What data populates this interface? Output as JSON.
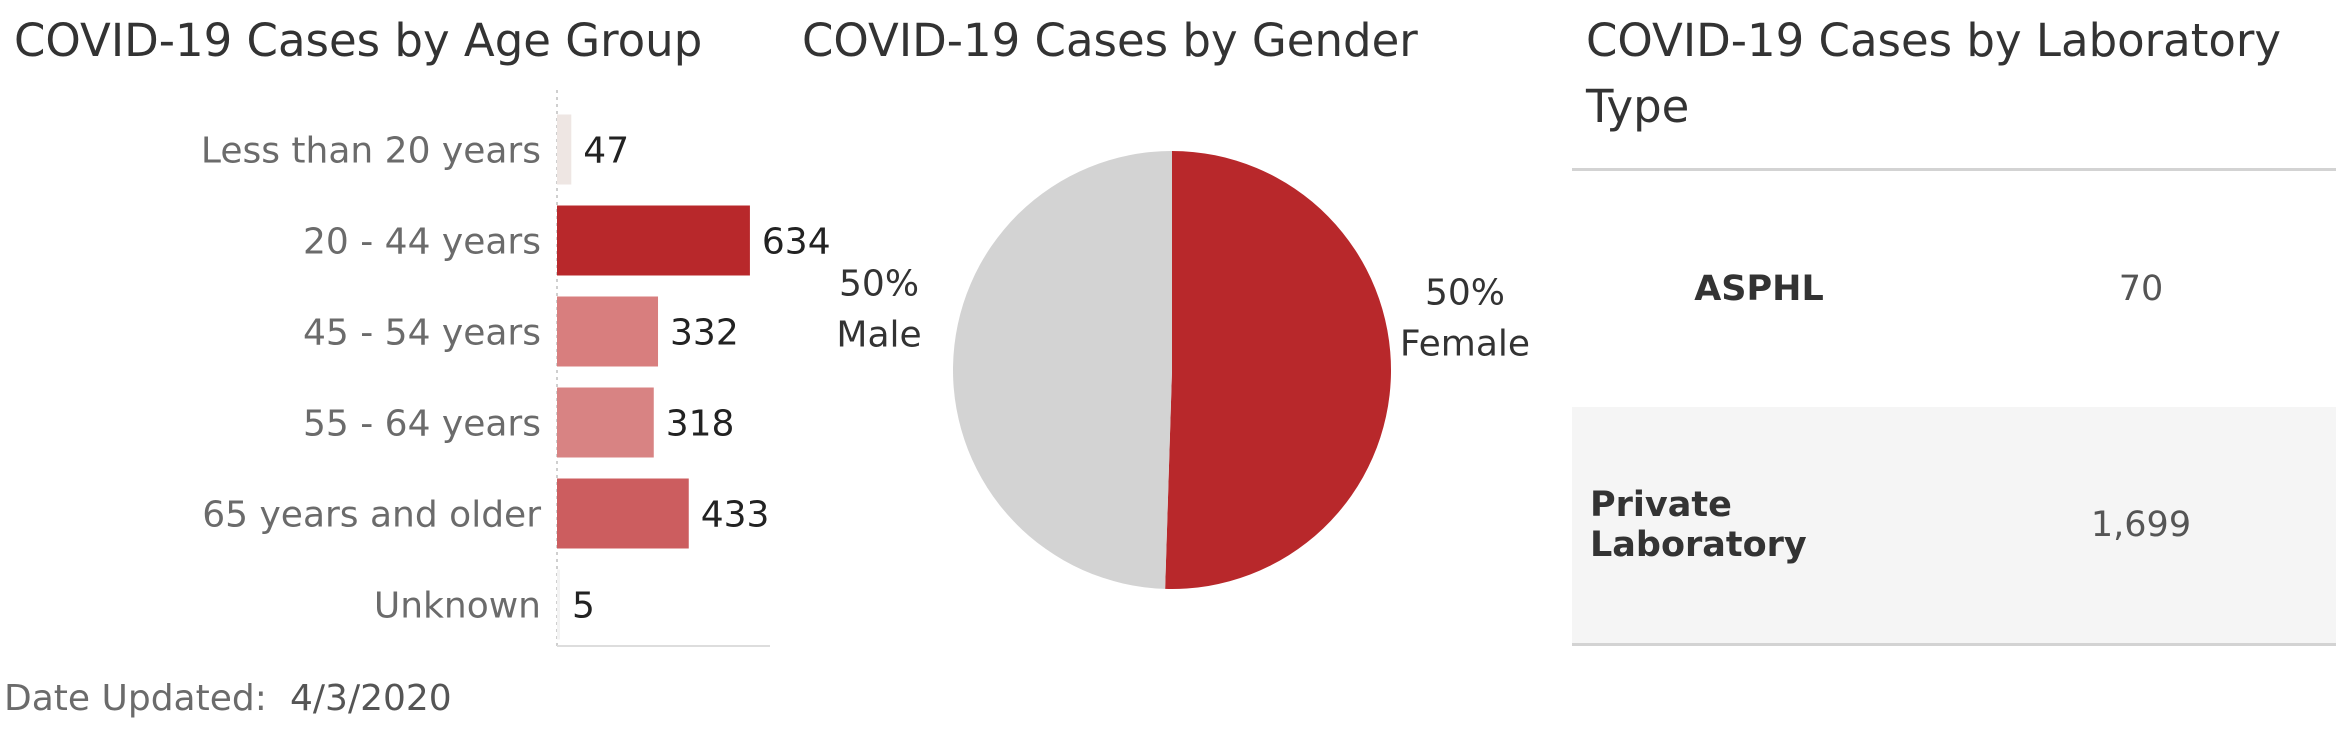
{
  "age_panel": {
    "title": "COVID-19 Cases by Age Group"
  },
  "gender_panel": {
    "title": "COVID-19 Cases by Gender"
  },
  "lab_panel": {
    "title": "COVID-19 Cases by Laboratory Type",
    "rows": [
      {
        "name": "ASPHL",
        "value": "70"
      },
      {
        "name": "Private Laboratory",
        "value": "1,699"
      }
    ]
  },
  "footer": {
    "date_label": "Date Updated:",
    "date_value": "4/3/2020"
  },
  "chart_data": [
    {
      "type": "bar",
      "title": "COVID-19 Cases by Age Group",
      "orientation": "horizontal",
      "categories": [
        "Less than 20 years",
        "20 - 44 years",
        "45 - 54 years",
        "55 - 64 years",
        "65 years and older",
        "Unknown"
      ],
      "values": [
        47,
        634,
        332,
        318,
        433,
        5
      ],
      "value_labels": [
        "47",
        "634",
        "332",
        "318",
        "433",
        "5"
      ],
      "bar_colors": [
        "#eee6e3",
        "#b8282b",
        "#d87e7e",
        "#d88383",
        "#cc5d5f",
        "#f3f3f3"
      ],
      "xlim": [
        0,
        700
      ],
      "grid": false
    },
    {
      "type": "pie",
      "title": "COVID-19 Cases by Gender",
      "slices": [
        {
          "percent": 50.5,
          "display": "50%",
          "label": "Female",
          "color": "#b8282b"
        },
        {
          "percent": 49.5,
          "display": "50%",
          "label": "Male",
          "color": "#d3d3d3"
        }
      ]
    }
  ]
}
